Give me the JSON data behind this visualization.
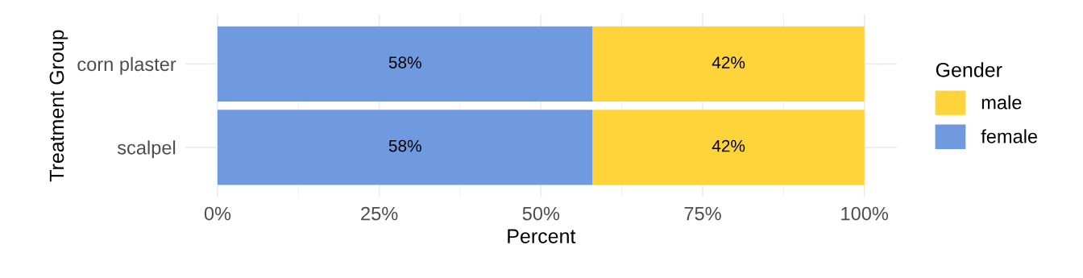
{
  "chart_data": {
    "type": "bar",
    "orientation": "horizontal",
    "stacked": true,
    "categories": [
      "corn plaster",
      "scalpel"
    ],
    "series": [
      {
        "name": "female",
        "color": "#6f9ae0",
        "values": [
          58,
          58
        ],
        "value_labels": [
          "58%",
          "58%"
        ]
      },
      {
        "name": "male",
        "color": "#ffd43b",
        "values": [
          42,
          42
        ],
        "value_labels": [
          "42%",
          "42%"
        ]
      }
    ],
    "xlabel": "Percent",
    "ylabel": "Treatment Group",
    "legend_title": "Gender",
    "xlim": [
      -5,
      105
    ],
    "xticks": [
      {
        "value": 0,
        "label": "0%"
      },
      {
        "value": 25,
        "label": "25%"
      },
      {
        "value": 50,
        "label": "50%"
      },
      {
        "value": 75,
        "label": "75%"
      },
      {
        "value": 100,
        "label": "100%"
      }
    ],
    "grid": true,
    "legend": "right"
  }
}
